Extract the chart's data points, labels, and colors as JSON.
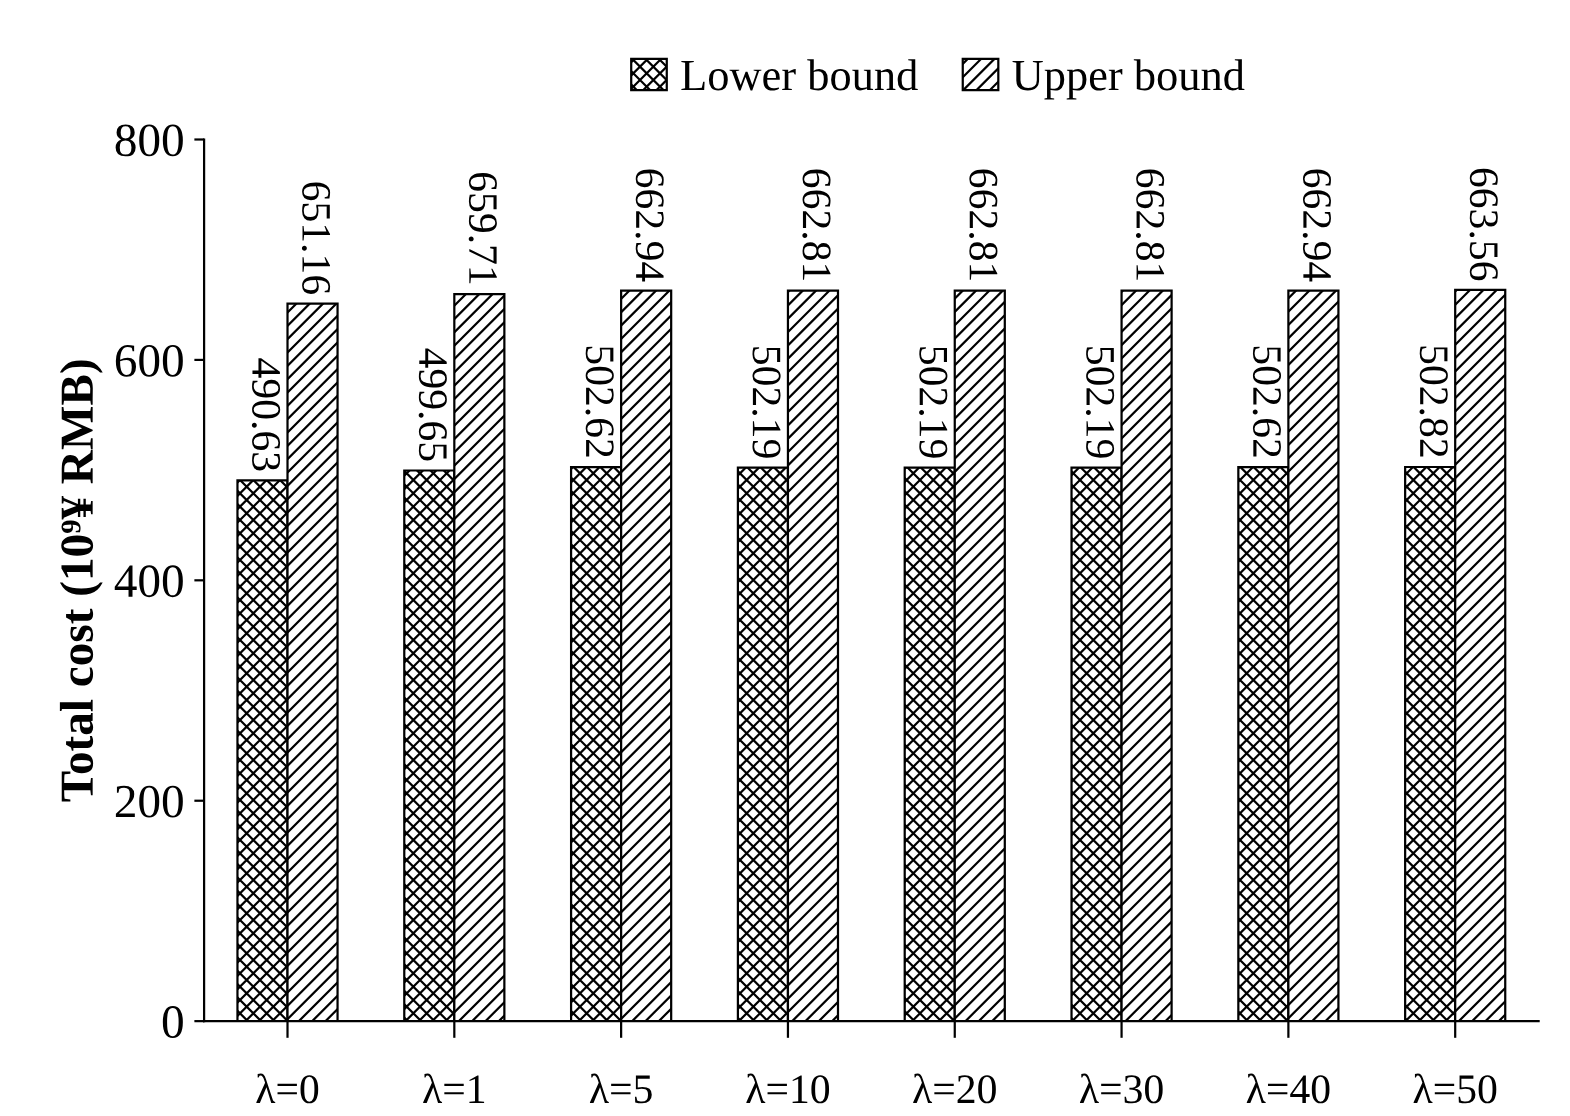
{
  "chart_data": {
    "type": "bar",
    "ylabel": "Total cost (10⁹¥ RMB)",
    "categories": [
      "λ=0",
      "λ=1",
      "λ=5",
      "λ=10",
      "λ=20",
      "λ=30",
      "λ=40",
      "λ=50"
    ],
    "series": [
      {
        "name": "Lower bound",
        "color": "#000000",
        "values": [
          490.63,
          499.65,
          502.62,
          502.19,
          502.19,
          502.19,
          502.62,
          502.82
        ]
      },
      {
        "name": "Upper bound",
        "color": "#000000",
        "values": [
          651.16,
          659.71,
          662.94,
          662.81,
          662.81,
          662.81,
          662.94,
          663.56
        ]
      }
    ],
    "ylim": [
      0,
      800
    ],
    "yticks": [
      0,
      200,
      400,
      600,
      800
    ],
    "grid": false,
    "legend": "top",
    "data_labels": true
  }
}
